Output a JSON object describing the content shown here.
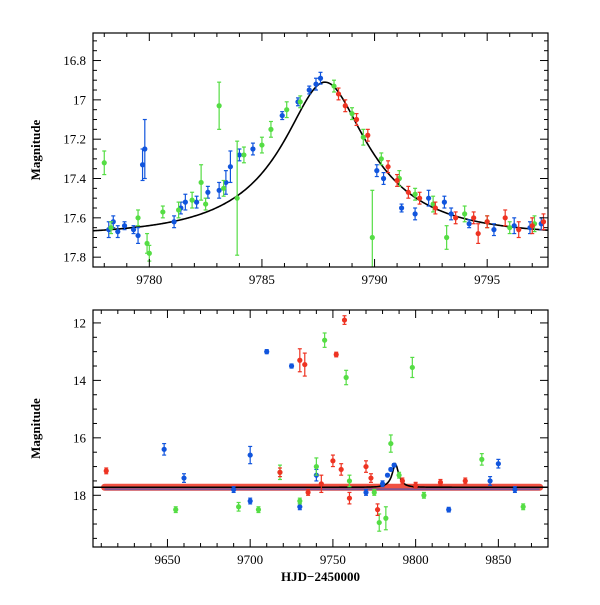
{
  "colors": {
    "blue": "#1155dd",
    "green": "#55dd44",
    "red": "#ee3322",
    "model": "#000000"
  },
  "chart_data": [
    {
      "type": "scatter",
      "name": "zoom-panel",
      "title": "",
      "xlabel": "",
      "ylabel": "Magnitude",
      "xlim": [
        9777.5,
        9797.7
      ],
      "ylim": [
        17.85,
        16.66
      ],
      "y_inverted": true,
      "x_ticks": [
        9780,
        9785,
        9790,
        9795
      ],
      "x_tick_labels": [
        "9780",
        "9785",
        "9790",
        "9795"
      ],
      "y_ticks": [
        16.8,
        17.0,
        17.2,
        17.4,
        17.6,
        17.8
      ],
      "y_tick_labels": [
        "16.8",
        "17",
        "17.2",
        "17.4",
        "17.6",
        "17.8"
      ],
      "model_curve": {
        "peak_t": 9787.8,
        "peak_mag": 16.91,
        "base_mag": 17.69,
        "tE": 5.2,
        "u0": 0.36
      },
      "series": [
        {
          "name": "blue-observatory",
          "color_key": "blue",
          "points": [
            [
              9778.2,
              17.66,
              0.04
            ],
            [
              9778.4,
              17.62,
              0.03
            ],
            [
              9778.6,
              17.67,
              0.03
            ],
            [
              9778.9,
              17.64,
              0.02
            ],
            [
              9779.3,
              17.66,
              0.02
            ],
            [
              9779.5,
              17.69,
              0.04
            ],
            [
              9779.7,
              17.33,
              0.08
            ],
            [
              9779.8,
              17.25,
              0.15
            ],
            [
              9781.1,
              17.62,
              0.03
            ],
            [
              9781.4,
              17.55,
              0.03
            ],
            [
              9781.6,
              17.52,
              0.04
            ],
            [
              9782.1,
              17.52,
              0.03
            ],
            [
              9782.6,
              17.47,
              0.03
            ],
            [
              9783.1,
              17.46,
              0.04
            ],
            [
              9783.4,
              17.42,
              0.06
            ],
            [
              9783.6,
              17.34,
              0.08
            ],
            [
              9784.0,
              17.28,
              0.03
            ],
            [
              9784.6,
              17.25,
              0.03
            ],
            [
              9785.9,
              17.08,
              0.02
            ],
            [
              9786.6,
              17.01,
              0.02
            ],
            [
              9787.1,
              16.95,
              0.02
            ],
            [
              9787.4,
              16.92,
              0.03
            ],
            [
              9787.6,
              16.89,
              0.03
            ],
            [
              9790.1,
              17.36,
              0.03
            ],
            [
              9790.4,
              17.4,
              0.03
            ],
            [
              9791.2,
              17.55,
              0.02
            ],
            [
              9791.8,
              17.58,
              0.03
            ],
            [
              9792.4,
              17.5,
              0.04
            ],
            [
              9793.1,
              17.52,
              0.03
            ],
            [
              9793.4,
              17.58,
              0.03
            ],
            [
              9794.2,
              17.63,
              0.02
            ],
            [
              9795.3,
              17.66,
              0.03
            ],
            [
              9796.2,
              17.64,
              0.04
            ],
            [
              9796.9,
              17.65,
              0.03
            ],
            [
              9797.4,
              17.63,
              0.03
            ]
          ]
        },
        {
          "name": "green-observatory",
          "color_key": "green",
          "points": [
            [
              9778.0,
              17.32,
              0.06
            ],
            [
              9778.3,
              17.65,
              0.03
            ],
            [
              9779.5,
              17.6,
              0.04
            ],
            [
              9779.9,
              17.73,
              0.05
            ],
            [
              9780.0,
              17.78,
              0.04
            ],
            [
              9780.6,
              17.57,
              0.03
            ],
            [
              9781.3,
              17.56,
              0.04
            ],
            [
              9781.9,
              17.51,
              0.04
            ],
            [
              9782.3,
              17.42,
              0.09
            ],
            [
              9782.5,
              17.53,
              0.03
            ],
            [
              9783.1,
              17.03,
              0.12
            ],
            [
              9783.3,
              17.45,
              0.04
            ],
            [
              9783.9,
              17.5,
              0.29
            ],
            [
              9784.2,
              17.28,
              0.04
            ],
            [
              9785.0,
              17.23,
              0.04
            ],
            [
              9785.4,
              17.15,
              0.04
            ],
            [
              9786.1,
              17.05,
              0.04
            ],
            [
              9786.7,
              17.01,
              0.03
            ],
            [
              9788.2,
              16.93,
              0.03
            ],
            [
              9789.0,
              17.07,
              0.03
            ],
            [
              9789.5,
              17.19,
              0.04
            ],
            [
              9789.9,
              17.7,
              0.24
            ],
            [
              9790.3,
              17.3,
              0.03
            ],
            [
              9791.1,
              17.4,
              0.04
            ],
            [
              9791.8,
              17.48,
              0.03
            ],
            [
              9792.6,
              17.53,
              0.04
            ],
            [
              9793.2,
              17.7,
              0.06
            ],
            [
              9794.0,
              17.58,
              0.04
            ],
            [
              9795.0,
              17.62,
              0.03
            ],
            [
              9796.0,
              17.65,
              0.03
            ],
            [
              9797.1,
              17.63,
              0.04
            ]
          ]
        },
        {
          "name": "red-observatory",
          "color_key": "red",
          "points": [
            [
              9788.4,
              16.97,
              0.03
            ],
            [
              9788.7,
              17.03,
              0.03
            ],
            [
              9789.2,
              17.1,
              0.03
            ],
            [
              9789.7,
              17.18,
              0.03
            ],
            [
              9790.6,
              17.34,
              0.03
            ],
            [
              9791.0,
              17.41,
              0.03
            ],
            [
              9791.5,
              17.47,
              0.03
            ],
            [
              9792.0,
              17.5,
              0.03
            ],
            [
              9792.7,
              17.55,
              0.03
            ],
            [
              9793.6,
              17.6,
              0.03
            ],
            [
              9794.4,
              17.6,
              0.03
            ],
            [
              9794.6,
              17.68,
              0.05
            ],
            [
              9795.0,
              17.62,
              0.03
            ],
            [
              9795.8,
              17.6,
              0.04
            ],
            [
              9796.4,
              17.66,
              0.04
            ],
            [
              9797.0,
              17.64,
              0.04
            ],
            [
              9797.5,
              17.62,
              0.04
            ]
          ]
        }
      ]
    },
    {
      "type": "scatter",
      "name": "full-panel",
      "title": "",
      "xlabel": "HJD−2450000",
      "ylabel": "Magnitude",
      "xlim": [
        9605,
        9880
      ],
      "ylim": [
        19.8,
        11.55
      ],
      "y_inverted": true,
      "x_ticks": [
        9650,
        9700,
        9750,
        9800,
        9850
      ],
      "x_tick_labels": [
        "9650",
        "9700",
        "9750",
        "9800",
        "9850"
      ],
      "y_ticks": [
        12,
        14,
        16,
        18
      ],
      "y_tick_labels": [
        "12",
        "14",
        "16",
        "18"
      ],
      "baseline": {
        "x_start": 9612,
        "x_end": 9875,
        "mag": 17.72
      },
      "model_curve": {
        "peak_t": 9787.8,
        "peak_mag": 16.91,
        "base_mag": 17.72,
        "tE": 5.2,
        "u0": 0.36
      },
      "series": [
        {
          "name": "blue-observatory",
          "color_key": "blue",
          "points": [
            [
              9710,
              13.0,
              0.07
            ],
            [
              9725,
              13.5,
              0.07
            ],
            [
              9648,
              16.4,
              0.2
            ],
            [
              9700,
              16.6,
              0.3
            ],
            [
              9660,
              17.4,
              0.15
            ],
            [
              9690,
              17.8,
              0.1
            ],
            [
              9740,
              17.3,
              0.2
            ],
            [
              9770,
              17.9,
              0.1
            ],
            [
              9780,
              17.6,
              0.1
            ],
            [
              9783,
              17.3,
              0.05
            ],
            [
              9785,
              17.1,
              0.05
            ],
            [
              9787,
              16.95,
              0.05
            ],
            [
              9820,
              18.5,
              0.08
            ],
            [
              9845,
              17.5,
              0.15
            ],
            [
              9850,
              16.9,
              0.15
            ],
            [
              9860,
              17.8,
              0.1
            ],
            [
              9700,
              18.2,
              0.1
            ],
            [
              9730,
              18.4,
              0.1
            ]
          ]
        },
        {
          "name": "green-observatory",
          "color_key": "green",
          "points": [
            [
              9745,
              12.6,
              0.25
            ],
            [
              9758,
              13.9,
              0.25
            ],
            [
              9798,
              13.55,
              0.35
            ],
            [
              9785,
              16.2,
              0.3
            ],
            [
              9655,
              18.5,
              0.1
            ],
            [
              9693,
              18.4,
              0.15
            ],
            [
              9705,
              18.5,
              0.1
            ],
            [
              9718,
              17.2,
              0.25
            ],
            [
              9740,
              17.0,
              0.3
            ],
            [
              9760,
              17.5,
              0.2
            ],
            [
              9775,
              17.9,
              0.1
            ],
            [
              9778,
              18.95,
              0.3
            ],
            [
              9782,
              18.8,
              0.4
            ],
            [
              9790,
              17.3,
              0.1
            ],
            [
              9805,
              18.0,
              0.1
            ],
            [
              9840,
              16.75,
              0.2
            ],
            [
              9865,
              18.4,
              0.1
            ],
            [
              9730,
              18.2,
              0.1
            ]
          ]
        },
        {
          "name": "red-observatory",
          "color_key": "red",
          "points": [
            [
              9757,
              11.9,
              0.15
            ],
            [
              9752,
              13.1,
              0.08
            ],
            [
              9730,
              13.3,
              0.4
            ],
            [
              9733,
              13.45,
              0.4
            ],
            [
              9613,
              17.15,
              0.1
            ],
            [
              9718,
              17.2,
              0.15
            ],
            [
              9743,
              17.6,
              0.3
            ],
            [
              9750,
              16.8,
              0.2
            ],
            [
              9755,
              17.1,
              0.2
            ],
            [
              9770,
              17.0,
              0.2
            ],
            [
              9773,
              17.4,
              0.15
            ],
            [
              9777,
              18.5,
              0.2
            ],
            [
              9792,
              17.5,
              0.1
            ],
            [
              9800,
              17.65,
              0.1
            ],
            [
              9815,
              17.55,
              0.1
            ],
            [
              9830,
              17.5,
              0.1
            ],
            [
              9735,
              17.9,
              0.1
            ],
            [
              9760,
              18.1,
              0.2
            ]
          ]
        }
      ]
    }
  ]
}
